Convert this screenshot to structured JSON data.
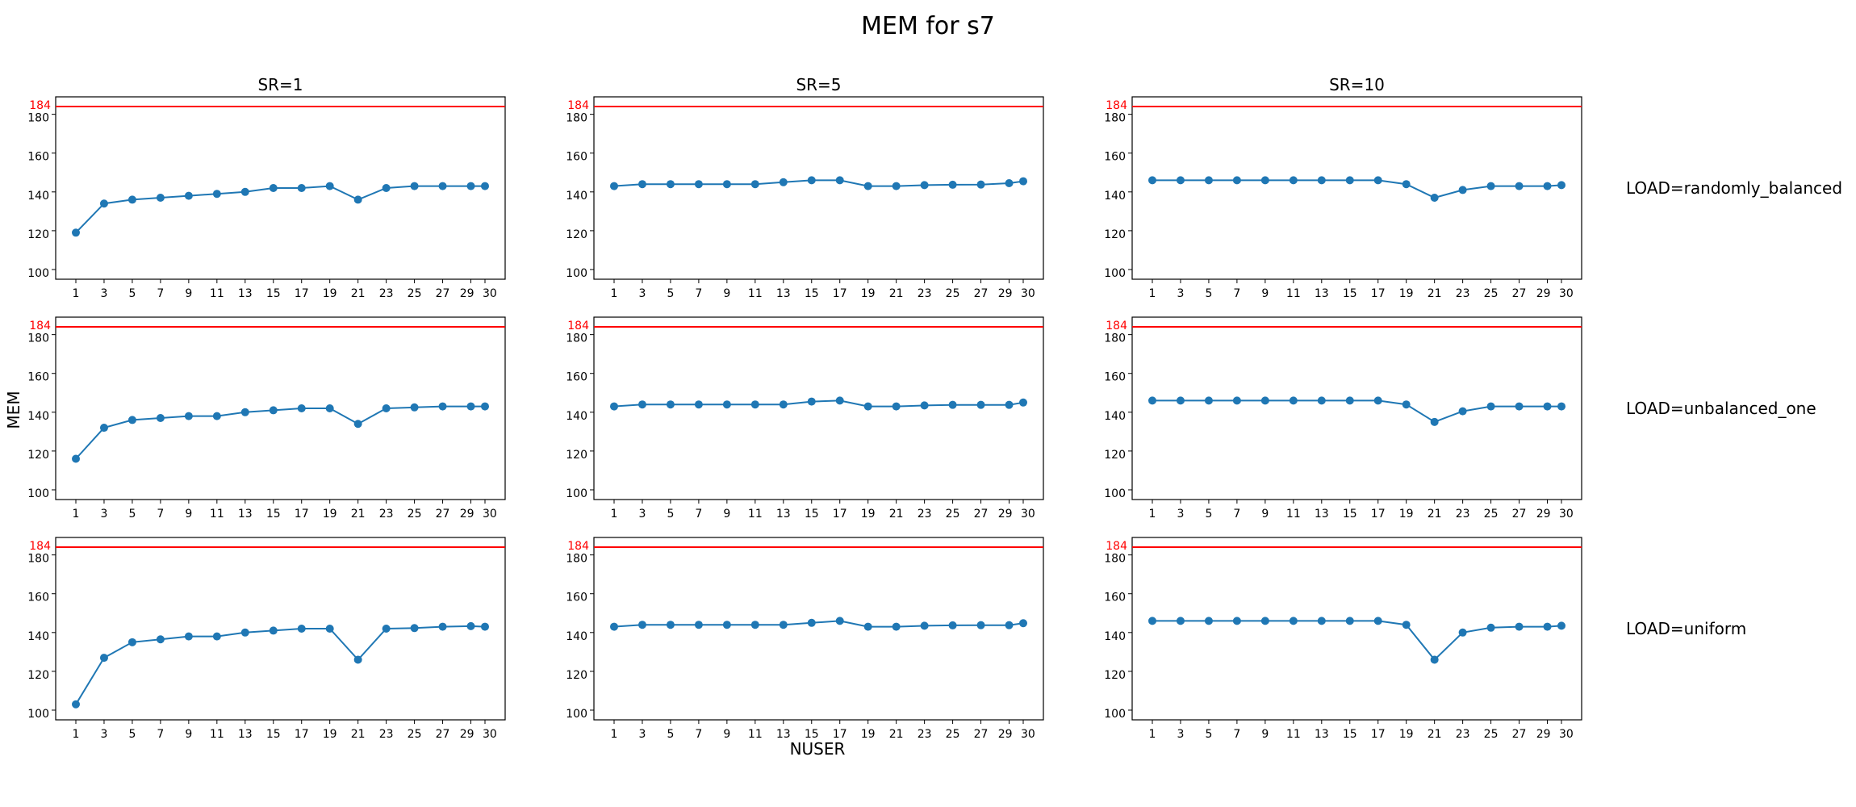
{
  "title": "MEM for s7",
  "xlabel": "NUSER",
  "ylabel": "MEM",
  "col_titles": [
    "SR=1",
    "SR=5",
    "SR=10"
  ],
  "row_labels": [
    "LOAD=randomly_balanced",
    "LOAD=unbalanced_one",
    "LOAD=uniform"
  ],
  "colors": {
    "series": "#1f77b4",
    "threshold": "#ff0000"
  },
  "chart_data": {
    "type": "line",
    "x": [
      1,
      3,
      5,
      7,
      9,
      11,
      13,
      15,
      17,
      19,
      21,
      23,
      25,
      27,
      29,
      30
    ],
    "x_ticks": [
      1,
      3,
      5,
      7,
      9,
      11,
      13,
      15,
      17,
      19,
      21,
      23,
      25,
      27,
      29,
      30
    ],
    "y_ticks": [
      100,
      120,
      140,
      160,
      180
    ],
    "ylim": [
      95,
      189
    ],
    "threshold": {
      "value": 184,
      "label": "184"
    },
    "grid": false,
    "panels": [
      [
        [
          119,
          134,
          136,
          137,
          138,
          139,
          140,
          142,
          142,
          143,
          136,
          142,
          143,
          143,
          143,
          143
        ],
        [
          143,
          144,
          144,
          144,
          144,
          144,
          145,
          146,
          146,
          143,
          143,
          143.5,
          143.7,
          143.8,
          144.5,
          145.5
        ],
        [
          146,
          146,
          146,
          146,
          146,
          146,
          146,
          146,
          146,
          144,
          137,
          141,
          143,
          143,
          143,
          143.5
        ]
      ],
      [
        [
          116,
          132,
          136,
          137,
          138,
          138,
          140,
          141,
          142,
          142,
          134,
          142,
          142.5,
          143,
          143,
          143
        ],
        [
          143,
          144,
          144,
          144,
          144,
          144,
          144,
          145.5,
          146,
          143,
          143,
          143.5,
          143.8,
          143.8,
          143.8,
          145
        ],
        [
          146,
          146,
          146,
          146,
          146,
          146,
          146,
          146,
          146,
          144,
          135,
          140.5,
          143,
          143,
          143,
          143
        ]
      ],
      [
        [
          103,
          127,
          135,
          136.5,
          138,
          138,
          140,
          141,
          142,
          142,
          126,
          142,
          142.3,
          143,
          143.3,
          143
        ],
        [
          143,
          144,
          144,
          144,
          144,
          144,
          144,
          145,
          146,
          143,
          143,
          143.5,
          143.7,
          143.8,
          143.8,
          144.8
        ],
        [
          146,
          146,
          146,
          146,
          146,
          146,
          146,
          146,
          146,
          144,
          126,
          140,
          142.5,
          143,
          143,
          143.5
        ]
      ]
    ]
  }
}
